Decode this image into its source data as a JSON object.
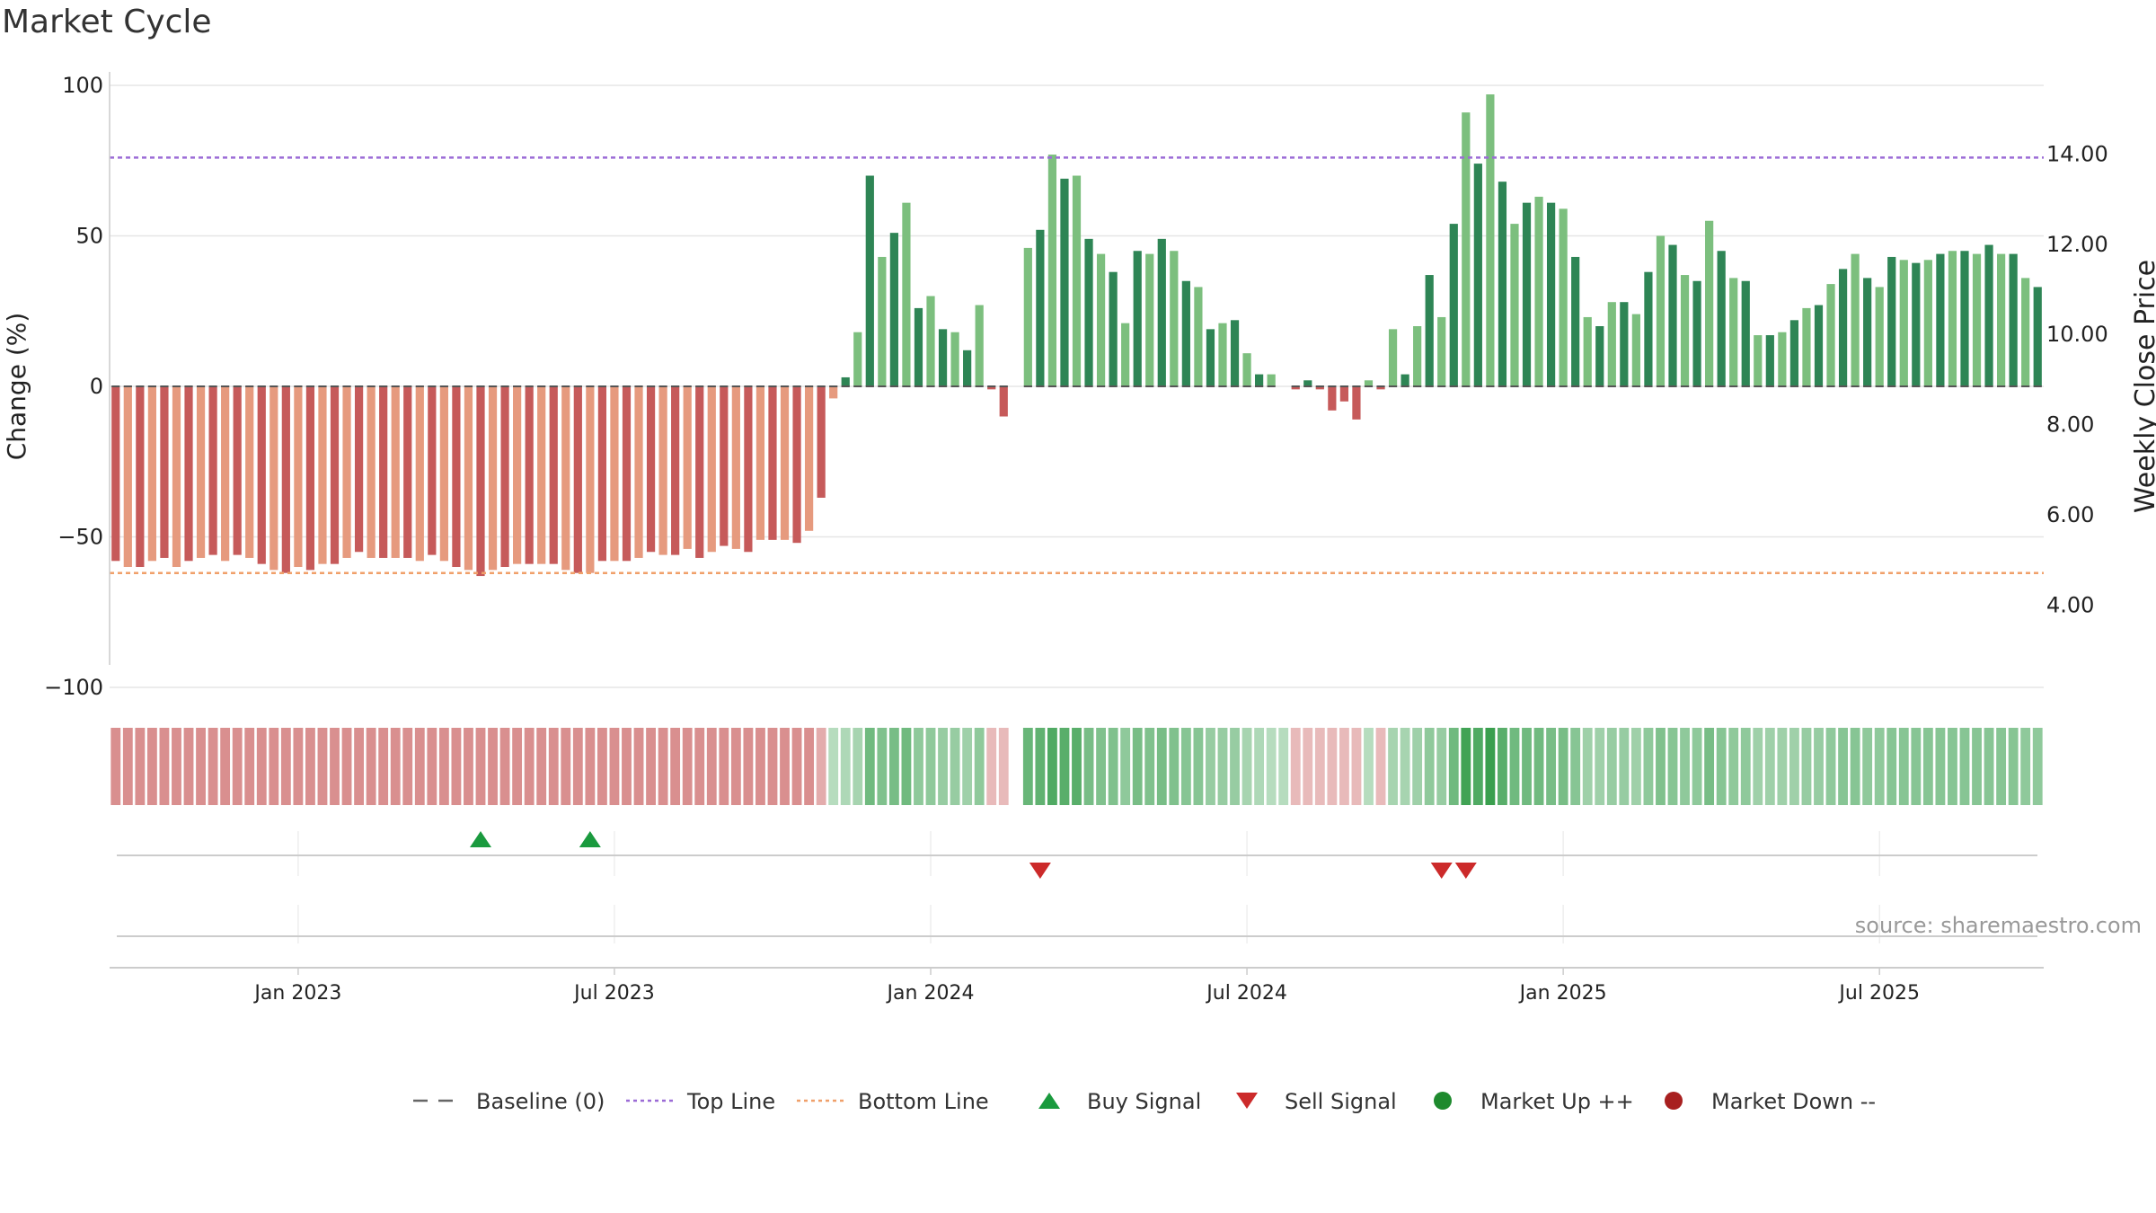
{
  "title": "Market Cycle",
  "source": "source: sharemaestro.com",
  "chart_data": {
    "type": "bar",
    "ylabel": "Change (%)",
    "y2label": "Weekly Close Price",
    "ylim": [
      -100,
      100
    ],
    "yticks": [
      100,
      50,
      0,
      -50,
      -100
    ],
    "ytick_labels": [
      "100",
      "50",
      "0",
      "−50",
      "−100"
    ],
    "y2ticks": [
      14,
      12,
      10,
      8,
      6,
      4
    ],
    "y2tick_labels": [
      "14.00",
      "12.00",
      "10.00",
      "8.00",
      "6.00",
      "4.00"
    ],
    "y2lim": [
      2.16,
      15.5
    ],
    "xtick_labels": [
      "Jan 2023",
      "Jul 2023",
      "Jan 2024",
      "Jul 2024",
      "Jan 2025",
      "Jul 2025"
    ],
    "xtick_weeks": [
      15,
      41,
      67,
      93,
      119,
      145
    ],
    "top_line": 76,
    "bottom_line": -62,
    "baseline": 0,
    "values": [
      -58,
      -60,
      -60,
      -58,
      -57,
      -60,
      -58,
      -57,
      -56,
      -58,
      -56,
      -57,
      -59,
      -61,
      -62,
      -60,
      -61,
      -59,
      -59,
      -57,
      -55,
      -57,
      -57,
      -57,
      -57,
      -58,
      -56,
      -58,
      -60,
      -61,
      -63,
      -61,
      -60,
      -59,
      -59,
      -59,
      -59,
      -61,
      -62,
      -62,
      -58,
      -58,
      -58,
      -57,
      -55,
      -56,
      -56,
      -54,
      -57,
      -55,
      -53,
      -54,
      -55,
      -51,
      -51,
      -51,
      -52,
      -48,
      -37,
      -4,
      3,
      18,
      70,
      43,
      51,
      61,
      26,
      30,
      19,
      18,
      12,
      27,
      -1,
      -10,
      0,
      46,
      52,
      77,
      69,
      70,
      49,
      44,
      38,
      21,
      45,
      44,
      49,
      45,
      35,
      33,
      19,
      21,
      22,
      11,
      4,
      4,
      0,
      -1,
      2,
      -1,
      -8,
      -5,
      -11,
      2,
      -1,
      19,
      4,
      20,
      37,
      23,
      54,
      91,
      74,
      97,
      68,
      54,
      61,
      63,
      61,
      59,
      43,
      23,
      20,
      28,
      28,
      24,
      38,
      50,
      47,
      37,
      35,
      55,
      45,
      36,
      35,
      17,
      17,
      18,
      22,
      26,
      27,
      34,
      39,
      44,
      36,
      33,
      43,
      42,
      41,
      42,
      44,
      45,
      45,
      44,
      47,
      44,
      44,
      36,
      33
    ],
    "strength_bars": [
      -0.5,
      -0.5,
      -0.5,
      -0.5,
      -0.5,
      -0.5,
      -0.5,
      -0.5,
      -0.5,
      -0.5,
      -0.5,
      -0.5,
      -0.5,
      -0.5,
      -0.5,
      -0.5,
      -0.5,
      -0.5,
      -0.5,
      -0.5,
      -0.5,
      -0.5,
      -0.5,
      -0.5,
      -0.5,
      -0.5,
      -0.5,
      -0.5,
      -0.5,
      -0.5,
      -0.5,
      -0.5,
      -0.5,
      -0.5,
      -0.5,
      -0.5,
      -0.5,
      -0.5,
      -0.5,
      -0.5,
      -0.5,
      -0.5,
      -0.5,
      -0.5,
      -0.5,
      -0.5,
      -0.5,
      -0.5,
      -0.5,
      -0.5,
      -0.5,
      -0.5,
      -0.5,
      -0.5,
      -0.5,
      -0.5,
      -0.5,
      -0.5,
      -0.3,
      0.2,
      0.25,
      0.3,
      0.65,
      0.55,
      0.6,
      0.65,
      0.45,
      0.45,
      0.4,
      0.4,
      0.35,
      0.45,
      -0.2,
      -0.2,
      null,
      0.7,
      0.75,
      0.85,
      0.8,
      0.8,
      0.6,
      0.55,
      0.55,
      0.45,
      0.6,
      0.55,
      0.6,
      0.55,
      0.5,
      0.5,
      0.4,
      0.4,
      0.4,
      0.3,
      0.25,
      0.2,
      0.2,
      -0.2,
      -0.2,
      -0.2,
      -0.2,
      -0.2,
      -0.2,
      0.2,
      -0.2,
      0.3,
      0.3,
      0.35,
      0.45,
      0.4,
      0.65,
      0.95,
      0.85,
      1.0,
      0.8,
      0.65,
      0.65,
      0.65,
      0.6,
      0.6,
      0.5,
      0.35,
      0.35,
      0.4,
      0.4,
      0.35,
      0.45,
      0.55,
      0.5,
      0.45,
      0.45,
      0.6,
      0.5,
      0.45,
      0.45,
      0.35,
      0.35,
      0.35,
      0.35,
      0.4,
      0.4,
      0.45,
      0.5,
      0.5,
      0.45,
      0.45,
      0.5,
      0.5,
      0.5,
      0.5,
      0.5,
      0.5,
      0.5,
      0.5,
      0.5,
      0.5,
      0.5,
      0.45,
      0.45
    ],
    "buy_signal_weeks": [
      30,
      39
    ],
    "sell_signal_weeks": [
      76,
      109,
      111
    ],
    "colors": {
      "down_dark": "#c65a5a",
      "down_light": "#e69a7e",
      "up_dark": "#2e8555",
      "up_light": "#7cbf7e",
      "top_line": "#9b6bd6",
      "bottom_line": "#f0a06a",
      "baseline": "#555555",
      "buy": "#1a9a3e",
      "sell": "#cc2a2a",
      "market_up": "#1e8a2e",
      "market_down": "#a82020"
    },
    "legend": [
      {
        "label": "Baseline (0)",
        "marker": "dash",
        "color": "#666666"
      },
      {
        "label": "Top Line",
        "marker": "dotted",
        "color": "#9b6bd6"
      },
      {
        "label": "Bottom Line",
        "marker": "dotted",
        "color": "#f0a06a"
      },
      {
        "label": "Buy Signal",
        "marker": "triangle-up",
        "color": "#1a9a3e"
      },
      {
        "label": "Sell Signal",
        "marker": "triangle-down",
        "color": "#cc2a2a"
      },
      {
        "label": "Market Up ++",
        "marker": "circle",
        "color": "#1e8a2e"
      },
      {
        "label": "Market Down --",
        "marker": "circle",
        "color": "#a82020"
      }
    ],
    "legend_position": "bottom-center",
    "grid": true
  }
}
